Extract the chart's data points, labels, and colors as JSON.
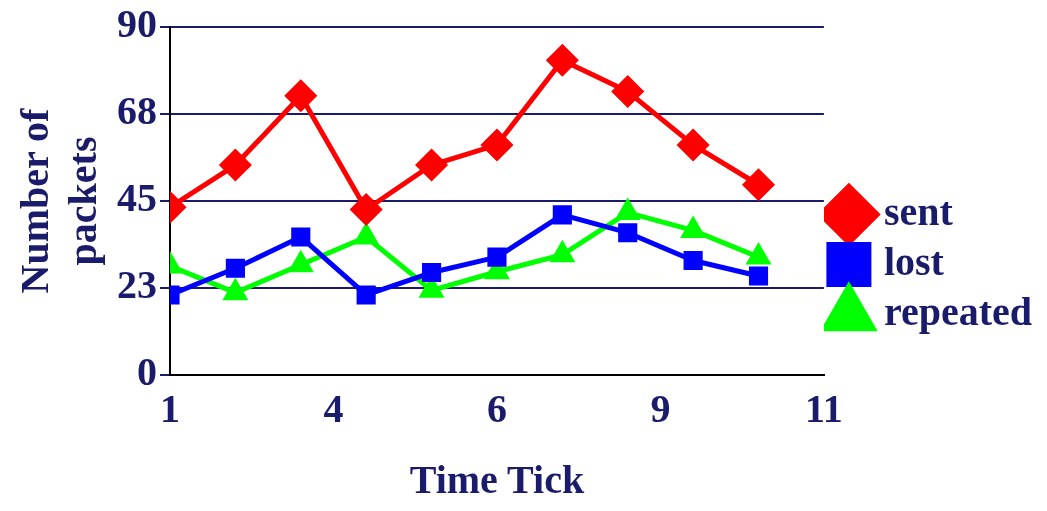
{
  "chart_data": {
    "type": "line",
    "xlabel": "Time Tick",
    "ylabel": "Number of packets",
    "x": [
      1,
      2,
      3,
      4,
      5,
      6,
      7,
      8,
      9,
      10
    ],
    "xlim": [
      1,
      11
    ],
    "xticks": [
      1,
      {
        "value": 3.5,
        "label": "4"
      },
      6,
      {
        "value": 8.5,
        "label": "9"
      },
      11
    ],
    "ylim": [
      0,
      90
    ],
    "yticks": [
      0,
      {
        "value": 22.5,
        "label": "23"
      },
      45,
      {
        "value": 67.5,
        "label": "68"
      },
      90
    ],
    "grid": "y",
    "legend": "right",
    "line_style": "solid",
    "series": [
      {
        "name": "sent",
        "color": "#ff0000",
        "marker": "diamond",
        "values": [
          43.4,
          54.3,
          72.2,
          42.8,
          54.3,
          59.5,
          81.4,
          73.3,
          59.5,
          49.2
        ]
      },
      {
        "name": "lost",
        "color": "#0000ff",
        "marker": "square",
        "values": [
          20.7,
          27.6,
          35.7,
          20.7,
          26.5,
          30.5,
          41.4,
          36.8,
          29.6,
          25.6
        ]
      },
      {
        "name": "repeated",
        "color": "#00ff00",
        "marker": "triangle",
        "values": [
          28.2,
          21.3,
          28.5,
          35.7,
          21.9,
          26.7,
          31.1,
          42.0,
          37.4,
          30.5
        ]
      }
    ]
  }
}
